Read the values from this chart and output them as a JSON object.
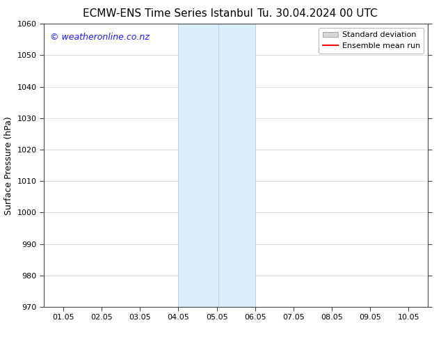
{
  "title_left": "ECMW-ENS Time Series Istanbul",
  "title_right": "Tu. 30.04.2024 00 UTC",
  "ylabel": "Surface Pressure (hPa)",
  "xlim": [
    0.5,
    10.5
  ],
  "ylim": [
    970,
    1060
  ],
  "yticks": [
    970,
    980,
    990,
    1000,
    1010,
    1020,
    1030,
    1040,
    1050,
    1060
  ],
  "xtick_labels": [
    "01.05",
    "02.05",
    "03.05",
    "04.05",
    "05.05",
    "06.05",
    "07.05",
    "08.05",
    "09.05",
    "10.05"
  ],
  "xtick_positions": [
    1.0,
    2.0,
    3.0,
    4.0,
    5.0,
    6.0,
    7.0,
    8.0,
    9.0,
    10.0
  ],
  "shaded_region_x1": 4.0,
  "shaded_region_x2": 6.0,
  "shade_color": "#daedf8",
  "shade_edge_color": "#b5d5ea",
  "inner_line_x": 5.05,
  "inner_line_color": "#b5d5ea",
  "watermark_text": "© weatheronline.co.nz",
  "watermark_color": "#1a1aff",
  "legend_std_label": "Standard deviation",
  "legend_ens_label": "Ensemble mean run",
  "legend_std_facecolor": "#d8d8d8",
  "legend_std_edgecolor": "#aaaaaa",
  "legend_ens_color": "#ff0000",
  "background_color": "#ffffff",
  "spine_color": "#444444",
  "title_fontsize": 11,
  "tick_fontsize": 8,
  "ylabel_fontsize": 9,
  "watermark_fontsize": 9,
  "legend_fontsize": 8
}
